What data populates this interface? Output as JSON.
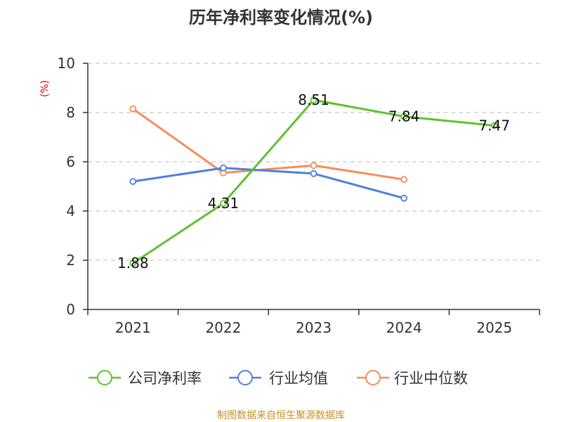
{
  "chart_data": {
    "type": "line",
    "title": "历年净利率变化情况(%)",
    "ylabel": "(%)",
    "xlabel": "",
    "categories": [
      "2021",
      "2022",
      "2023",
      "2024",
      "2025"
    ],
    "ylim": [
      0,
      10
    ],
    "yticks": [
      0,
      2,
      4,
      6,
      8,
      10
    ],
    "grid": true,
    "legend_position": "bottom",
    "series": [
      {
        "name": "公司净利率",
        "color": "#5ec22e",
        "values": [
          1.88,
          4.31,
          8.51,
          7.84,
          7.47
        ],
        "labels": [
          "1.88",
          "4.31",
          "8.51",
          "7.84",
          "7.47"
        ]
      },
      {
        "name": "行业均值",
        "color": "#4f7fdb",
        "values": [
          5.2,
          5.75,
          5.52,
          4.52,
          null
        ]
      },
      {
        "name": "行业中位数",
        "color": "#f58d5a",
        "values": [
          8.15,
          5.55,
          5.85,
          5.28,
          null
        ]
      }
    ]
  },
  "source": "制图数据来自恒生聚源数据库"
}
